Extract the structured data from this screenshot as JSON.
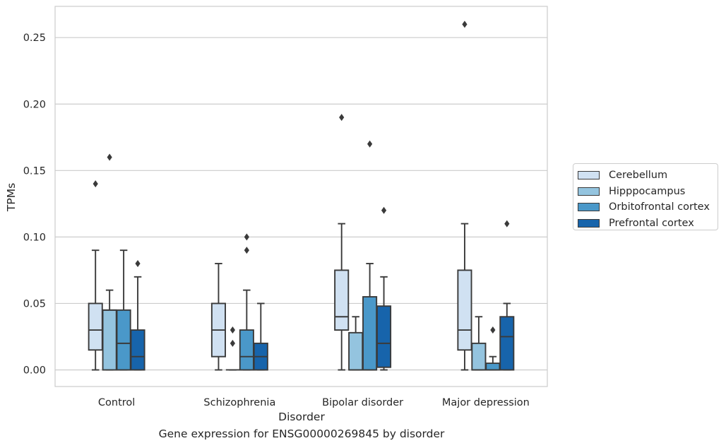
{
  "chart_data": {
    "type": "box",
    "title": "",
    "caption": "Gene expression for ENSG00000269845 by disorder",
    "xlabel": "Disorder",
    "ylabel": "TPMs",
    "ylim": [
      -0.0125,
      0.2735
    ],
    "yticks": [
      0.0,
      0.05,
      0.1,
      0.15,
      0.2,
      0.25
    ],
    "ytick_labels": [
      "0.00",
      "0.05",
      "0.10",
      "0.15",
      "0.20",
      "0.25"
    ],
    "grid": "horizontal",
    "legend_position": "right",
    "categories": [
      "Control",
      "Schizophrenia",
      "Bipolar disorder",
      "Major depression"
    ],
    "series": [
      {
        "name": "Cerebellum",
        "color": "#d0e1f2",
        "boxes": [
          {
            "whisker_low": 0.0,
            "q1": 0.015,
            "median": 0.03,
            "q3": 0.05,
            "whisker_high": 0.09,
            "outliers": [
              0.14
            ]
          },
          {
            "whisker_low": 0.0,
            "q1": 0.01,
            "median": 0.03,
            "q3": 0.05,
            "whisker_high": 0.08,
            "outliers": []
          },
          {
            "whisker_low": 0.0,
            "q1": 0.03,
            "median": 0.04,
            "q3": 0.075,
            "whisker_high": 0.11,
            "outliers": [
              0.19
            ]
          },
          {
            "whisker_low": 0.0,
            "q1": 0.015,
            "median": 0.03,
            "q3": 0.075,
            "whisker_high": 0.11,
            "outliers": [
              0.26
            ]
          }
        ]
      },
      {
        "name": "Hipppocampus",
        "color": "#94c4df",
        "boxes": [
          {
            "whisker_low": 0.0,
            "q1": 0.0,
            "median": 0.045,
            "q3": 0.045,
            "whisker_high": 0.06,
            "outliers": [
              0.16
            ]
          },
          {
            "whisker_low": 0.0,
            "q1": 0.0,
            "median": 0.0,
            "q3": 0.0,
            "whisker_high": 0.0,
            "outliers": [
              0.02,
              0.03
            ]
          },
          {
            "whisker_low": 0.0,
            "q1": 0.0,
            "median": 0.0,
            "q3": 0.028,
            "whisker_high": 0.04,
            "outliers": []
          },
          {
            "whisker_low": 0.0,
            "q1": 0.0,
            "median": 0.0,
            "q3": 0.02,
            "whisker_high": 0.04,
            "outliers": []
          }
        ]
      },
      {
        "name": "Orbitofrontal cortex",
        "color": "#4a98c9",
        "boxes": [
          {
            "whisker_low": 0.0,
            "q1": 0.0,
            "median": 0.02,
            "q3": 0.045,
            "whisker_high": 0.09,
            "outliers": []
          },
          {
            "whisker_low": 0.0,
            "q1": 0.0,
            "median": 0.01,
            "q3": 0.03,
            "whisker_high": 0.06,
            "outliers": [
              0.09,
              0.1
            ]
          },
          {
            "whisker_low": 0.0,
            "q1": 0.0,
            "median": 0.0,
            "q3": 0.055,
            "whisker_high": 0.08,
            "outliers": [
              0.17
            ]
          },
          {
            "whisker_low": 0.0,
            "q1": 0.0,
            "median": 0.0,
            "q3": 0.005,
            "whisker_high": 0.01,
            "outliers": [
              0.03
            ]
          }
        ]
      },
      {
        "name": "Prefrontal cortex",
        "color": "#1764ab",
        "boxes": [
          {
            "whisker_low": 0.0,
            "q1": 0.0,
            "median": 0.01,
            "q3": 0.03,
            "whisker_high": 0.07,
            "outliers": [
              0.08
            ]
          },
          {
            "whisker_low": 0.0,
            "q1": 0.0,
            "median": 0.01,
            "q3": 0.02,
            "whisker_high": 0.05,
            "outliers": []
          },
          {
            "whisker_low": 0.0,
            "q1": 0.002,
            "median": 0.02,
            "q3": 0.048,
            "whisker_high": 0.07,
            "outliers": [
              0.12
            ]
          },
          {
            "whisker_low": 0.0,
            "q1": 0.0,
            "median": 0.025,
            "q3": 0.04,
            "whisker_high": 0.05,
            "outliers": [
              0.11
            ]
          }
        ]
      }
    ]
  }
}
